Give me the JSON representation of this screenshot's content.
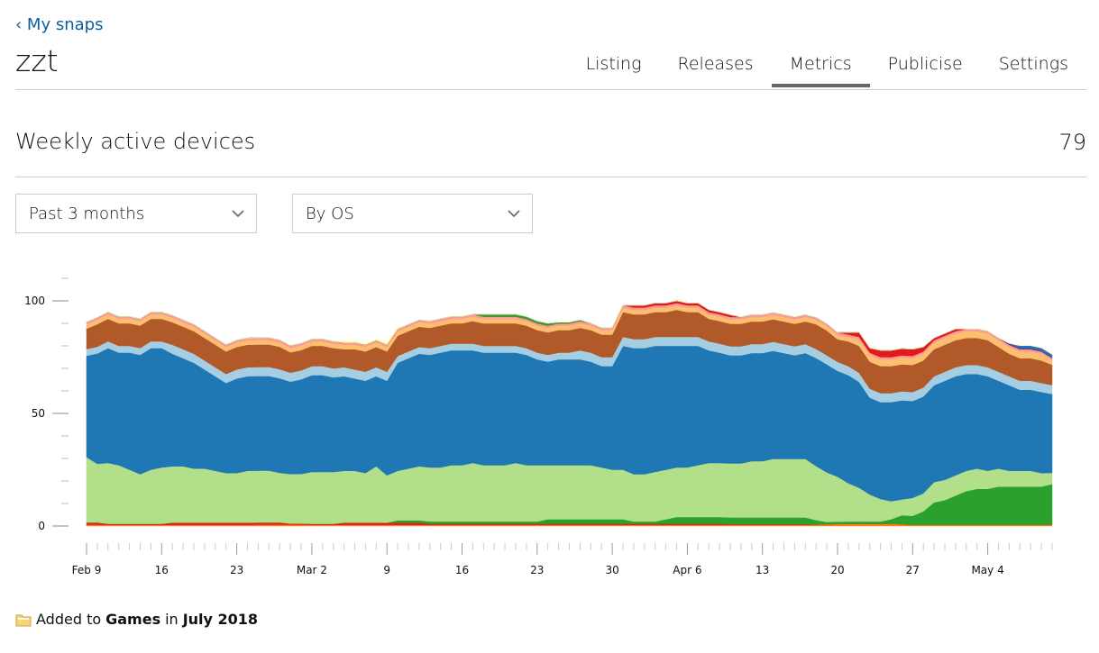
{
  "back_link": "‹ My snaps",
  "snap_name": "zzt",
  "tabs": [
    {
      "label": "Listing"
    },
    {
      "label": "Releases"
    },
    {
      "label": "Metrics",
      "active": true
    },
    {
      "label": "Publicise"
    },
    {
      "label": "Settings"
    }
  ],
  "section": {
    "title": "Weekly active devices",
    "total": "79"
  },
  "filters": {
    "period": "Past 3 months",
    "breakdown": "By OS"
  },
  "footer": {
    "prefix": "Added to",
    "category": "Games",
    "middle": "in",
    "date": "July 2018"
  },
  "icons": {
    "folder": "folder-icon",
    "chevron": "chevron-down-icon"
  },
  "colors": {
    "accent_link": "#0a5f9e",
    "active_tab_bar": "#666666"
  },
  "chart_data": {
    "type": "area",
    "stacked": true,
    "yticks": [
      "0",
      "50",
      "100"
    ],
    "ylim": [
      0,
      110
    ],
    "xtick_labels": [
      "Feb 9",
      "16",
      "23",
      "Mar 2",
      "9",
      "16",
      "23",
      "30",
      "Apr 6",
      "13",
      "20",
      "27",
      "May 4"
    ],
    "x_start": "2018-02-09",
    "days": 91,
    "series": [
      {
        "color": "#ff7f0e",
        "values": [
          0.6,
          0.6,
          0.5,
          0.5,
          0.5,
          0.5,
          0.5,
          0.5,
          0.5,
          0.5,
          0.5,
          0.5,
          0.5,
          0.5,
          0.5,
          0.5,
          0.6,
          0.6,
          0.6,
          0.6,
          0.6,
          0.5,
          0.5,
          0.5,
          0.5,
          0.5,
          0.5,
          0.5,
          0.5,
          0.5,
          0.5,
          0.5,
          0.5,
          0.5,
          0.5,
          0.5,
          0.5,
          0.5,
          0.5,
          0.5,
          0.5,
          0.5,
          0.5,
          0.5,
          0.5,
          0.5,
          0.5,
          0.5,
          0.5,
          0.5,
          0.5,
          0.5,
          0.5,
          0.5,
          0.5,
          0.5,
          0.5,
          0.5,
          0.5,
          0.5,
          0.5,
          0.5,
          0.5,
          0.5,
          0.5,
          0.5,
          0.5,
          0.5,
          0.6,
          0.8,
          0.9,
          1,
          1,
          1,
          1,
          1,
          0.8,
          0.5,
          0.5,
          0.5,
          0.5,
          0.5,
          0.5,
          0.5,
          0.5,
          0.5,
          0.5,
          0.5,
          0.5,
          0.5,
          0.6
        ]
      },
      {
        "color": "#d62728",
        "values": [
          1,
          1,
          0.5,
          0.5,
          0.5,
          0.5,
          0.5,
          0.5,
          1,
          1,
          1,
          1,
          1,
          1,
          1,
          1,
          1,
          1,
          1,
          0.5,
          0.5,
          0.5,
          0.5,
          0.5,
          1,
          1,
          1,
          1,
          1,
          1,
          1,
          1,
          0.5,
          0.5,
          0.5,
          0.5,
          0.5,
          0.5,
          0.5,
          0.5,
          0.5,
          0.5,
          0.5,
          0.5,
          0.5,
          0.5,
          0.5,
          0.5,
          0.5,
          0.5,
          0.5,
          0.5,
          0.5,
          0.5,
          0.5,
          0.5,
          0.5,
          0.5,
          0.5,
          0.5,
          0.3,
          0.3,
          0.3,
          0.3,
          0.3,
          0.3,
          0.3,
          0.3,
          0,
          0,
          0,
          0,
          0,
          0,
          0,
          0,
          0,
          0,
          0,
          0,
          0,
          0,
          0,
          0,
          0,
          0,
          0,
          0,
          0,
          0,
          0
        ]
      },
      {
        "color": "#2ca02c",
        "values": [
          0,
          0,
          0,
          0,
          0,
          0,
          0,
          0,
          0,
          0,
          0,
          0,
          0,
          0,
          0,
          0,
          0,
          0,
          0,
          0,
          0,
          0,
          0,
          0,
          0,
          0,
          0,
          0,
          0,
          1,
          1,
          1,
          1,
          1,
          1,
          1,
          1,
          1,
          1,
          1,
          1,
          1,
          1,
          2,
          2,
          2,
          2,
          2,
          2,
          2,
          2,
          1,
          1,
          1,
          2,
          3,
          3,
          3,
          3,
          3,
          3,
          3,
          3,
          3,
          3,
          3,
          3,
          3,
          2,
          1,
          1,
          1,
          1,
          1,
          1,
          2,
          4,
          4,
          6,
          10,
          11,
          13,
          15,
          16,
          16,
          17,
          17,
          17,
          17,
          17,
          18
        ]
      },
      {
        "color": "#b2df8a",
        "values": [
          29,
          26,
          27,
          26,
          24,
          22,
          24,
          25,
          25,
          25,
          24,
          24,
          23,
          22,
          22,
          23,
          23,
          23,
          22,
          22,
          22,
          23,
          23,
          23,
          23,
          23,
          22,
          25,
          21,
          22,
          23,
          24,
          24,
          24,
          25,
          25,
          26,
          25,
          25,
          25,
          26,
          25,
          25,
          24,
          24,
          24,
          24,
          24,
          23,
          22,
          22,
          21,
          21,
          22,
          22,
          22,
          22,
          23,
          24,
          24,
          24,
          24,
          25,
          25,
          26,
          26,
          26,
          26,
          24,
          22,
          20,
          17,
          15,
          12,
          10,
          8,
          7,
          8,
          8,
          9,
          9,
          9,
          9,
          9,
          8,
          8,
          7,
          7,
          7,
          6,
          5
        ]
      },
      {
        "color": "#1f77b4",
        "values": [
          45,
          49,
          51,
          50,
          52,
          53,
          54,
          53,
          50,
          48,
          47,
          44,
          42,
          40,
          42,
          42,
          42,
          42,
          42,
          41,
          42,
          43,
          43,
          42,
          42,
          41,
          41,
          40,
          42,
          48,
          49,
          50,
          50,
          51,
          51,
          51,
          50,
          50,
          50,
          50,
          49,
          49,
          47,
          46,
          47,
          47,
          47,
          46,
          45,
          46,
          55,
          56,
          56,
          56,
          55,
          54,
          54,
          53,
          50,
          49,
          48,
          48,
          48,
          48,
          48,
          47,
          46,
          47,
          48,
          48,
          47,
          48,
          47,
          43,
          43,
          44,
          44,
          43,
          43,
          43,
          44,
          44,
          43,
          42,
          42,
          39,
          38,
          36,
          36,
          36,
          35
        ]
      },
      {
        "color": "#a6cee3",
        "values": [
          3,
          3,
          3,
          3,
          3,
          3,
          3,
          3,
          4,
          4,
          4,
          4,
          4,
          4,
          4,
          4,
          4,
          4,
          4,
          4,
          4,
          4,
          4,
          4,
          4,
          4,
          4,
          4,
          4,
          3,
          3,
          3,
          3,
          3,
          3,
          3,
          3,
          3,
          3,
          3,
          3,
          3,
          3,
          3,
          3,
          3,
          4,
          4,
          4,
          4,
          4,
          4,
          4,
          4,
          4,
          4,
          4,
          4,
          4,
          4,
          4,
          4,
          4,
          4,
          4,
          4,
          4,
          4,
          4,
          4,
          4,
          4,
          4,
          4,
          4,
          4,
          4,
          4,
          4,
          4,
          4,
          4,
          4,
          4,
          4,
          4,
          4,
          4,
          4,
          4,
          4
        ]
      },
      {
        "color": "#b15928",
        "values": [
          9,
          10,
          10,
          10,
          10,
          10,
          10,
          10,
          10,
          10,
          10,
          10,
          10,
          10,
          10,
          10,
          10,
          10,
          10,
          9,
          9,
          9,
          9,
          9,
          8,
          9,
          9,
          9,
          9,
          9,
          9,
          9,
          9,
          9,
          9,
          9,
          10,
          10,
          10,
          10,
          10,
          10,
          10,
          10,
          10,
          10,
          10,
          10,
          10,
          10,
          11,
          11,
          11,
          11,
          11,
          12,
          11,
          11,
          10,
          10,
          10,
          10,
          10,
          10,
          10,
          10,
          10,
          10,
          11,
          11,
          10,
          11,
          12,
          12,
          12,
          12,
          12,
          12,
          12,
          12,
          12,
          12,
          12,
          12,
          12,
          11,
          10,
          10,
          10,
          10,
          9
        ]
      },
      {
        "color": "#fdbf6f",
        "values": [
          2,
          2,
          2,
          2,
          2,
          2,
          2,
          2,
          2,
          2,
          2,
          2,
          2,
          2,
          2,
          2,
          2,
          2,
          2,
          2,
          2,
          2,
          2,
          2,
          2,
          2,
          2,
          2,
          2,
          2,
          2,
          2,
          2,
          2,
          2,
          2,
          2,
          2,
          2,
          2,
          2,
          2,
          2,
          2,
          2,
          2,
          2,
          2,
          2,
          2,
          2,
          2,
          2,
          2,
          2,
          2,
          2,
          2,
          2,
          2,
          2,
          2,
          2,
          2,
          2,
          2,
          2,
          2,
          2,
          2,
          2,
          2,
          3,
          3,
          3,
          3,
          3,
          3,
          3,
          3,
          3,
          3,
          3,
          3,
          3,
          3,
          3,
          3,
          3,
          3,
          2
        ]
      },
      {
        "color": "#fb9a99",
        "values": [
          1,
          1,
          1,
          1,
          1,
          1,
          1,
          1,
          1,
          1,
          1,
          1,
          1,
          1,
          1,
          1,
          1,
          1,
          1,
          1,
          1,
          1,
          1,
          1,
          1,
          1,
          1,
          1,
          1,
          1,
          1,
          1,
          1,
          1,
          1,
          1,
          1,
          1,
          1,
          1,
          1,
          1,
          1,
          1,
          1,
          1,
          1,
          1,
          1,
          1,
          1,
          1,
          1,
          1,
          1,
          1,
          1,
          1,
          1,
          1,
          1,
          1,
          1,
          1,
          1,
          1,
          1,
          1,
          1,
          1,
          1,
          1,
          1,
          1,
          1,
          1,
          1,
          1,
          1,
          1,
          1,
          1,
          1,
          1,
          1,
          1,
          1,
          1,
          1,
          1,
          1
        ]
      },
      {
        "color": "#e31a1c",
        "values": [
          0,
          0,
          0,
          0,
          0,
          0,
          0,
          0,
          0,
          0,
          0,
          0,
          0,
          0,
          0,
          0,
          0,
          0,
          0,
          0,
          0,
          0,
          0,
          0,
          0,
          0,
          0,
          0,
          0,
          0,
          0,
          0,
          0,
          0,
          0,
          0,
          0,
          0,
          0,
          0,
          0,
          0,
          0,
          0,
          0,
          0,
          0,
          0,
          0,
          0,
          0,
          1,
          1,
          1,
          1,
          1,
          1,
          1,
          1,
          1,
          1,
          0,
          0,
          0,
          0,
          0,
          0,
          0,
          0,
          0,
          0,
          1,
          2,
          2,
          3,
          3,
          3,
          3,
          2,
          1,
          1,
          1,
          0,
          0,
          0,
          0,
          0,
          0,
          0,
          0,
          0
        ]
      },
      {
        "color": "#33a02c",
        "values": [
          0,
          0,
          0,
          0,
          0,
          0,
          0,
          0,
          0,
          0,
          0,
          0,
          0,
          0,
          0,
          0,
          0,
          0,
          0,
          0,
          0,
          0,
          0,
          0,
          0,
          0,
          0,
          0,
          0,
          0,
          0,
          0,
          0,
          0,
          0,
          0,
          0,
          1,
          1,
          1,
          1,
          1,
          1,
          1,
          0.5,
          0.5,
          0.5,
          0,
          0,
          0,
          0,
          0,
          0,
          0,
          0,
          0,
          0,
          0,
          0,
          0,
          0,
          0,
          0,
          0,
          0,
          0,
          0,
          0,
          0,
          0,
          0,
          0,
          0,
          0,
          0,
          0,
          0,
          0,
          0,
          0,
          0,
          0,
          0,
          0,
          0,
          0,
          0,
          0,
          0,
          0,
          0
        ]
      },
      {
        "color": "#6a3d9a",
        "values": [
          0,
          0,
          0,
          0,
          0,
          0,
          0,
          0,
          0,
          0,
          0,
          0,
          0,
          0,
          0,
          0,
          0,
          0,
          0,
          0,
          0,
          0,
          0,
          0,
          0,
          0,
          0,
          0,
          0,
          0,
          0,
          0,
          0,
          0,
          0,
          0,
          0,
          0,
          0,
          0,
          0,
          0,
          0,
          0,
          0,
          0,
          0,
          0,
          0,
          0,
          0,
          0,
          0,
          0,
          0,
          0,
          0,
          0,
          0,
          0,
          0,
          0,
          0,
          0,
          0,
          0,
          0,
          0,
          0,
          0,
          0,
          0,
          0,
          0,
          0,
          0,
          0,
          0,
          0,
          0,
          0,
          0,
          0,
          0,
          0,
          0,
          0.6,
          0.6,
          0.6,
          0.6,
          0.6
        ]
      },
      {
        "color": "#1f78b4",
        "values": [
          0,
          0,
          0,
          0,
          0,
          0,
          0,
          0,
          0,
          0,
          0,
          0,
          0,
          0,
          0,
          0,
          0,
          0,
          0,
          0,
          0,
          0,
          0,
          0,
          0,
          0,
          0,
          0,
          0,
          0,
          0,
          0,
          0,
          0,
          0,
          0,
          0,
          0,
          0,
          0,
          0,
          0,
          0,
          0,
          0,
          0,
          0,
          0,
          0,
          0,
          0,
          0,
          0,
          0,
          0,
          0,
          0,
          0,
          0,
          0,
          0,
          0,
          0,
          0,
          0,
          0,
          0,
          0,
          0,
          0,
          0,
          0,
          0,
          0,
          0,
          0,
          0,
          0,
          0,
          0,
          0,
          0,
          0,
          0,
          0,
          0,
          0,
          1,
          1,
          1,
          1
        ]
      },
      {
        "color": "#ffff99",
        "values": [
          0,
          0,
          0,
          0,
          0,
          0,
          0,
          0,
          0,
          0,
          0,
          0,
          0,
          0,
          0,
          0,
          0,
          0,
          0,
          0,
          0,
          0,
          0,
          0,
          0.6,
          0.6,
          0.6,
          0.6,
          0.6,
          0.6,
          0,
          0,
          0,
          0,
          0,
          0,
          0,
          0,
          0,
          0,
          0,
          0,
          0,
          0,
          0,
          0,
          0,
          0,
          0,
          0,
          0,
          0,
          0,
          0,
          0,
          0,
          0,
          0,
          0,
          0,
          0,
          0,
          0,
          0,
          0,
          0,
          0,
          0,
          0,
          0,
          0,
          0,
          0,
          0,
          0,
          0,
          0,
          0,
          0,
          0,
          0,
          0,
          0,
          0,
          0,
          0,
          0,
          0,
          0,
          0,
          0
        ]
      }
    ]
  }
}
